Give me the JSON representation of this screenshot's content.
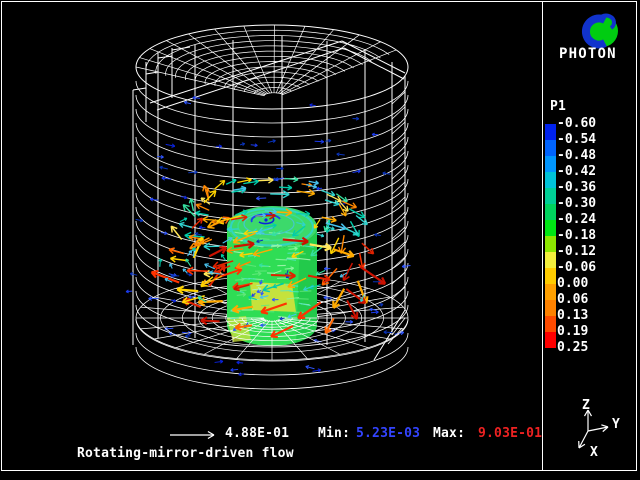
{
  "branding": {
    "name": "PHOTON",
    "logo": {
      "ring_color": "#1133cc",
      "ball_color": "#00cc11",
      "curl_color": "#1133cc"
    }
  },
  "legend": {
    "variable": "P1",
    "tick_labels": [
      "-0.60",
      "-0.54",
      "-0.48",
      "-0.42",
      "-0.36",
      "-0.30",
      "-0.24",
      "-0.18",
      "-0.12",
      "-0.06",
      "0.00",
      "0.06",
      "0.13",
      "0.19",
      "0.25"
    ],
    "segment_colors": [
      "#0022ee",
      "#0064ff",
      "#0096ff",
      "#00c3d9",
      "#00cf96",
      "#00d45e",
      "#00e614",
      "#8ce600",
      "#f2ee3c",
      "#ffcc00",
      "#ffa000",
      "#ff8200",
      "#ff4b00",
      "#ff0000"
    ]
  },
  "footer": {
    "reference_value": "4.88E-01",
    "min_label": "Min:",
    "min_value": "5.23E-03",
    "min_value_color": "#3344ff",
    "max_label": "Max:",
    "max_value": "9.03E-01",
    "max_value_color": "#ee2222",
    "title": "Rotating-mirror-driven flow"
  },
  "axis_triad": {
    "labels": [
      "Z",
      "Y",
      "X"
    ]
  },
  "scene": {
    "background": "#000000",
    "wireframe_color": "#ffffff",
    "inner_body_color": "#2fdd55",
    "inner_top_color": "#3cd96b",
    "inner_shade_color": "#17b944",
    "patch_color": "#cde23c",
    "texture_colors": [
      "#8df5a0",
      "#63e87c",
      "#aaf7b4",
      "#52e6c8"
    ],
    "vector_palette": {
      "slow": [
        "#0a23dd",
        "#1b3bee",
        "#2f55ff",
        "#0933bb"
      ],
      "medium": [
        "#00ccaa",
        "#2fd3cf",
        "#49c2ee",
        "#35e0a0"
      ],
      "fast": [
        "#ffd400",
        "#ffaa00",
        "#ffe659",
        "#ff8800"
      ],
      "fastest": [
        "#e02200",
        "#ff3300",
        "#ff6600",
        "#cc1100"
      ]
    }
  }
}
